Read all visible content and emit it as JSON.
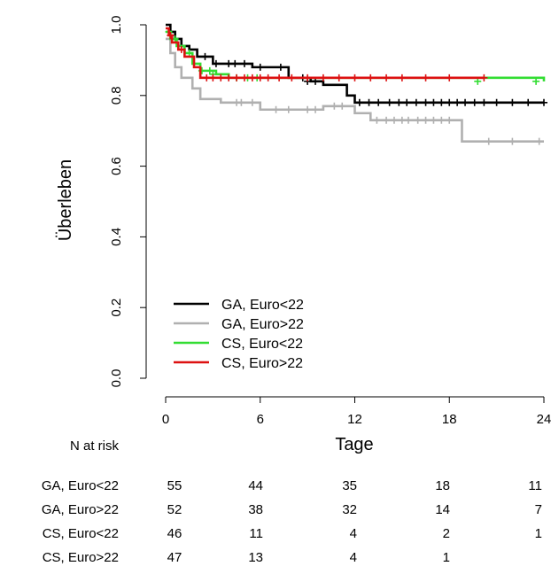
{
  "chart_data": {
    "type": "line",
    "step": true,
    "xlabel": "Tage",
    "ylabel": "Überleben",
    "xlim": [
      0,
      24
    ],
    "ylim": [
      0,
      1
    ],
    "x_ticks": [
      "0",
      "6",
      "12",
      "18",
      "24"
    ],
    "y_ticks": [
      "0.0",
      "0.2",
      "0.4",
      "0.6",
      "0.8",
      "1.0"
    ],
    "legend_position": "bottom-left",
    "series": [
      {
        "name": "GA, Euro<22",
        "color": "#000000",
        "points": [
          [
            0,
            1.0
          ],
          [
            0.3,
            0.98
          ],
          [
            0.6,
            0.96
          ],
          [
            1.0,
            0.94
          ],
          [
            1.5,
            0.93
          ],
          [
            2.0,
            0.91
          ],
          [
            3.0,
            0.89
          ],
          [
            5.5,
            0.88
          ],
          [
            7.8,
            0.85
          ],
          [
            9.2,
            0.84
          ],
          [
            10.0,
            0.83
          ],
          [
            11.5,
            0.8
          ],
          [
            12.0,
            0.78
          ],
          [
            24.0,
            0.78
          ]
        ],
        "censored": [
          [
            2.5,
            0.91
          ],
          [
            3.2,
            0.89
          ],
          [
            4.0,
            0.89
          ],
          [
            4.4,
            0.89
          ],
          [
            5.0,
            0.89
          ],
          [
            6.0,
            0.88
          ],
          [
            7.3,
            0.88
          ],
          [
            8.7,
            0.85
          ],
          [
            9.0,
            0.84
          ],
          [
            9.5,
            0.84
          ],
          [
            12.3,
            0.78
          ],
          [
            12.9,
            0.78
          ],
          [
            13.5,
            0.78
          ],
          [
            14.2,
            0.78
          ],
          [
            14.8,
            0.78
          ],
          [
            15.3,
            0.78
          ],
          [
            15.9,
            0.78
          ],
          [
            16.5,
            0.78
          ],
          [
            17.0,
            0.78
          ],
          [
            17.5,
            0.78
          ],
          [
            18.0,
            0.78
          ],
          [
            18.5,
            0.78
          ],
          [
            19.0,
            0.78
          ],
          [
            19.6,
            0.78
          ],
          [
            20.2,
            0.78
          ],
          [
            21.0,
            0.78
          ],
          [
            22.0,
            0.78
          ],
          [
            23.0,
            0.78
          ],
          [
            24.0,
            0.78
          ]
        ]
      },
      {
        "name": "GA, Euro>22",
        "color": "#b0b0b0",
        "points": [
          [
            0,
            0.96
          ],
          [
            0.3,
            0.92
          ],
          [
            0.6,
            0.88
          ],
          [
            1.0,
            0.85
          ],
          [
            1.7,
            0.82
          ],
          [
            2.2,
            0.79
          ],
          [
            3.5,
            0.78
          ],
          [
            6.0,
            0.76
          ],
          [
            10.0,
            0.77
          ],
          [
            12.0,
            0.75
          ],
          [
            13.0,
            0.73
          ],
          [
            18.8,
            0.67
          ],
          [
            24.0,
            0.67
          ]
        ],
        "censored": [
          [
            4.5,
            0.78
          ],
          [
            4.8,
            0.78
          ],
          [
            5.5,
            0.78
          ],
          [
            7.0,
            0.76
          ],
          [
            7.8,
            0.76
          ],
          [
            9.0,
            0.76
          ],
          [
            9.5,
            0.76
          ],
          [
            10.7,
            0.77
          ],
          [
            11.2,
            0.77
          ],
          [
            13.4,
            0.73
          ],
          [
            14.0,
            0.73
          ],
          [
            14.5,
            0.73
          ],
          [
            15.0,
            0.73
          ],
          [
            15.4,
            0.73
          ],
          [
            16.0,
            0.73
          ],
          [
            16.5,
            0.73
          ],
          [
            17.0,
            0.73
          ],
          [
            17.5,
            0.73
          ],
          [
            18.0,
            0.73
          ],
          [
            20.5,
            0.67
          ],
          [
            22.0,
            0.67
          ],
          [
            23.7,
            0.67
          ]
        ]
      },
      {
        "name": "CS, Euro<22",
        "color": "#33dd33",
        "points": [
          [
            0,
            0.98
          ],
          [
            0.3,
            0.96
          ],
          [
            0.7,
            0.94
          ],
          [
            1.2,
            0.92
          ],
          [
            1.7,
            0.89
          ],
          [
            2.2,
            0.87
          ],
          [
            3.2,
            0.86
          ],
          [
            4.0,
            0.85
          ],
          [
            24.0,
            0.84
          ]
        ],
        "censored": [
          [
            0.2,
            0.98
          ],
          [
            0.6,
            0.96
          ],
          [
            1.5,
            0.92
          ],
          [
            2.3,
            0.87
          ],
          [
            2.8,
            0.87
          ],
          [
            3.0,
            0.86
          ],
          [
            4.5,
            0.85
          ],
          [
            5.2,
            0.85
          ],
          [
            5.8,
            0.85
          ],
          [
            19.8,
            0.84
          ],
          [
            23.5,
            0.84
          ]
        ]
      },
      {
        "name": "CS, Euro>22",
        "color": "#dd1111",
        "points": [
          [
            0,
            0.99
          ],
          [
            0.2,
            0.97
          ],
          [
            0.4,
            0.95
          ],
          [
            0.8,
            0.93
          ],
          [
            1.2,
            0.91
          ],
          [
            1.8,
            0.88
          ],
          [
            2.2,
            0.85
          ],
          [
            20.2,
            0.85
          ]
        ],
        "censored": [
          [
            0.3,
            0.97
          ],
          [
            1.0,
            0.93
          ],
          [
            2.6,
            0.85
          ],
          [
            3.0,
            0.85
          ],
          [
            3.5,
            0.85
          ],
          [
            4.0,
            0.85
          ],
          [
            4.5,
            0.85
          ],
          [
            5.0,
            0.85
          ],
          [
            5.5,
            0.85
          ],
          [
            6.0,
            0.85
          ],
          [
            6.5,
            0.85
          ],
          [
            7.2,
            0.85
          ],
          [
            8.0,
            0.85
          ],
          [
            9.0,
            0.85
          ],
          [
            10.0,
            0.85
          ],
          [
            11.0,
            0.85
          ],
          [
            12.0,
            0.85
          ],
          [
            13.0,
            0.85
          ],
          [
            14.0,
            0.85
          ],
          [
            15.0,
            0.85
          ],
          [
            16.5,
            0.85
          ],
          [
            18.0,
            0.85
          ],
          [
            20.2,
            0.85
          ]
        ]
      }
    ]
  },
  "risk_table": {
    "title": "N at risk",
    "rows": [
      {
        "label": "GA, Euro<22",
        "values": [
          "55",
          "44",
          "35",
          "18",
          "11"
        ]
      },
      {
        "label": "GA, Euro>22",
        "values": [
          "52",
          "38",
          "32",
          "14",
          "7"
        ]
      },
      {
        "label": "CS, Euro<22",
        "values": [
          "46",
          "11",
          "4",
          "2",
          "1"
        ]
      },
      {
        "label": "CS, Euro>22",
        "values": [
          "47",
          "13",
          "4",
          "1",
          ""
        ]
      }
    ]
  }
}
